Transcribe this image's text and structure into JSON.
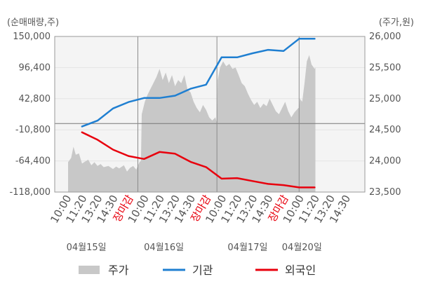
{
  "chart_data": {
    "type": "line",
    "left_axis_title": "(순매매량,주)",
    "right_axis_title": "(주가,원)",
    "left_ticks": [
      "150,000",
      "96,400",
      "42,800",
      "-10,800",
      "-64,400",
      "-118,000"
    ],
    "left_tick_values": [
      150000,
      96400,
      42800,
      -10800,
      -64400,
      -118000
    ],
    "left_ylim": [
      -118000,
      150000
    ],
    "right_ticks": [
      "26,000",
      "25,500",
      "25,000",
      "24,500",
      "24,000",
      "23,500"
    ],
    "right_tick_values": [
      26000,
      25500,
      25000,
      24500,
      24000,
      23500
    ],
    "right_ylim": [
      23500,
      26000
    ],
    "x_ticks": [
      {
        "label": "10:00",
        "close": false
      },
      {
        "label": "11:20",
        "close": false
      },
      {
        "label": "13:20",
        "close": false
      },
      {
        "label": "14:30",
        "close": false
      },
      {
        "label": "장마감",
        "close": true
      },
      {
        "label": "10:00",
        "close": false
      },
      {
        "label": "11:20",
        "close": false
      },
      {
        "label": "13:20",
        "close": false
      },
      {
        "label": "14:30",
        "close": false
      },
      {
        "label": "장마감",
        "close": true
      },
      {
        "label": "10:00",
        "close": false
      },
      {
        "label": "11:20",
        "close": false
      },
      {
        "label": "13:20",
        "close": false
      },
      {
        "label": "14:30",
        "close": false
      },
      {
        "label": "장마감",
        "close": true
      },
      {
        "label": "10:00",
        "close": false
      },
      {
        "label": "11:20",
        "close": false
      },
      {
        "label": "13:20",
        "close": false
      },
      {
        "label": "14:30",
        "close": false
      }
    ],
    "dates": [
      {
        "label": "04월15일",
        "tick_index": 1
      },
      {
        "label": "04월16일",
        "tick_index": 6
      },
      {
        "label": "04월17일",
        "tick_index": 11.4
      },
      {
        "label": "04월20일",
        "tick_index": 14.9
      }
    ],
    "day_boundaries": [
      4.5,
      9.6,
      14.9
    ],
    "series": [
      {
        "name": "기관",
        "axis": "left",
        "color": "#1f7fd1",
        "points": [
          [
            0.9,
            -5000
          ],
          [
            1.9,
            5000
          ],
          [
            2.9,
            26000
          ],
          [
            3.9,
            37000
          ],
          [
            4.9,
            44000
          ],
          [
            5.9,
            44000
          ],
          [
            6.9,
            48000
          ],
          [
            7.9,
            60000
          ],
          [
            8.9,
            67000
          ],
          [
            9.9,
            114000
          ],
          [
            10.9,
            114000
          ],
          [
            11.9,
            121000
          ],
          [
            12.9,
            127000
          ],
          [
            13.9,
            125000
          ],
          [
            14.9,
            146000
          ],
          [
            15.9,
            146000
          ]
        ]
      },
      {
        "name": "외국인",
        "axis": "left",
        "color": "#e8000d",
        "points": [
          [
            0.9,
            -15000
          ],
          [
            1.9,
            -28000
          ],
          [
            2.9,
            -45000
          ],
          [
            3.9,
            -56000
          ],
          [
            4.9,
            -61000
          ],
          [
            5.9,
            -49000
          ],
          [
            6.9,
            -52000
          ],
          [
            7.9,
            -66000
          ],
          [
            8.9,
            -75000
          ],
          [
            9.9,
            -95000
          ],
          [
            10.9,
            -94000
          ],
          [
            11.9,
            -99000
          ],
          [
            12.9,
            -104000
          ],
          [
            13.9,
            -106000
          ],
          [
            14.9,
            -110000
          ],
          [
            15.9,
            -110000
          ]
        ]
      }
    ],
    "price_series": {
      "name": "주가",
      "axis": "right",
      "color": "#c8c8c8",
      "points": [
        [
          0,
          23980
        ],
        [
          0.2,
          24050
        ],
        [
          0.35,
          24230
        ],
        [
          0.5,
          24100
        ],
        [
          0.7,
          24120
        ],
        [
          0.9,
          23960
        ],
        [
          1.1,
          23990
        ],
        [
          1.3,
          24020
        ],
        [
          1.5,
          23930
        ],
        [
          1.7,
          23980
        ],
        [
          1.9,
          23920
        ],
        [
          2.1,
          23950
        ],
        [
          2.3,
          23900
        ],
        [
          2.6,
          23920
        ],
        [
          2.9,
          23870
        ],
        [
          3.1,
          23910
        ],
        [
          3.3,
          23880
        ],
        [
          3.6,
          23930
        ],
        [
          3.8,
          23830
        ],
        [
          4.0,
          23890
        ],
        [
          4.2,
          23920
        ],
        [
          4.4,
          23860
        ],
        [
          4.6,
          23980
        ],
        [
          4.7,
          24000
        ],
        [
          4.75,
          24750
        ],
        [
          4.8,
          24800
        ],
        [
          4.95,
          24950
        ],
        [
          5.1,
          25050
        ],
        [
          5.3,
          25150
        ],
        [
          5.5,
          25250
        ],
        [
          5.7,
          25350
        ],
        [
          5.9,
          25480
        ],
        [
          6.1,
          25300
        ],
        [
          6.3,
          25420
        ],
        [
          6.5,
          25250
        ],
        [
          6.7,
          25380
        ],
        [
          6.9,
          25200
        ],
        [
          7.1,
          25300
        ],
        [
          7.3,
          25250
        ],
        [
          7.5,
          25380
        ],
        [
          7.7,
          25150
        ],
        [
          7.9,
          25100
        ],
        [
          8.1,
          24950
        ],
        [
          8.3,
          24850
        ],
        [
          8.5,
          24780
        ],
        [
          8.7,
          24900
        ],
        [
          8.9,
          24820
        ],
        [
          9.1,
          24700
        ],
        [
          9.3,
          24650
        ],
        [
          9.5,
          24700
        ],
        [
          9.6,
          24600
        ],
        [
          9.65,
          25300
        ],
        [
          9.8,
          25500
        ],
        [
          10.0,
          25600
        ],
        [
          10.2,
          25520
        ],
        [
          10.4,
          25560
        ],
        [
          10.6,
          25480
        ],
        [
          10.8,
          25500
        ],
        [
          11.0,
          25380
        ],
        [
          11.2,
          25250
        ],
        [
          11.4,
          25200
        ],
        [
          11.6,
          25080
        ],
        [
          11.8,
          24980
        ],
        [
          12.0,
          24900
        ],
        [
          12.2,
          24950
        ],
        [
          12.4,
          24850
        ],
        [
          12.6,
          24920
        ],
        [
          12.8,
          24880
        ],
        [
          13.0,
          25000
        ],
        [
          13.2,
          24900
        ],
        [
          13.4,
          24800
        ],
        [
          13.6,
          24750
        ],
        [
          13.8,
          24850
        ],
        [
          14.0,
          24950
        ],
        [
          14.2,
          24800
        ],
        [
          14.4,
          24700
        ],
        [
          14.6,
          24780
        ],
        [
          14.85,
          24850
        ],
        [
          14.9,
          24850
        ],
        [
          14.95,
          25000
        ],
        [
          15.1,
          24950
        ],
        [
          15.25,
          25250
        ],
        [
          15.4,
          25600
        ],
        [
          15.55,
          25700
        ],
        [
          15.7,
          25550
        ],
        [
          15.9,
          25480
        ],
        [
          15.95,
          25500
        ]
      ]
    }
  },
  "legend": [
    {
      "label": "주가",
      "kind": "area",
      "color": "#c8c8c8"
    },
    {
      "label": "기관",
      "kind": "line",
      "color": "#1f7fd1"
    },
    {
      "label": "외국인",
      "kind": "line",
      "color": "#e8000d"
    }
  ]
}
